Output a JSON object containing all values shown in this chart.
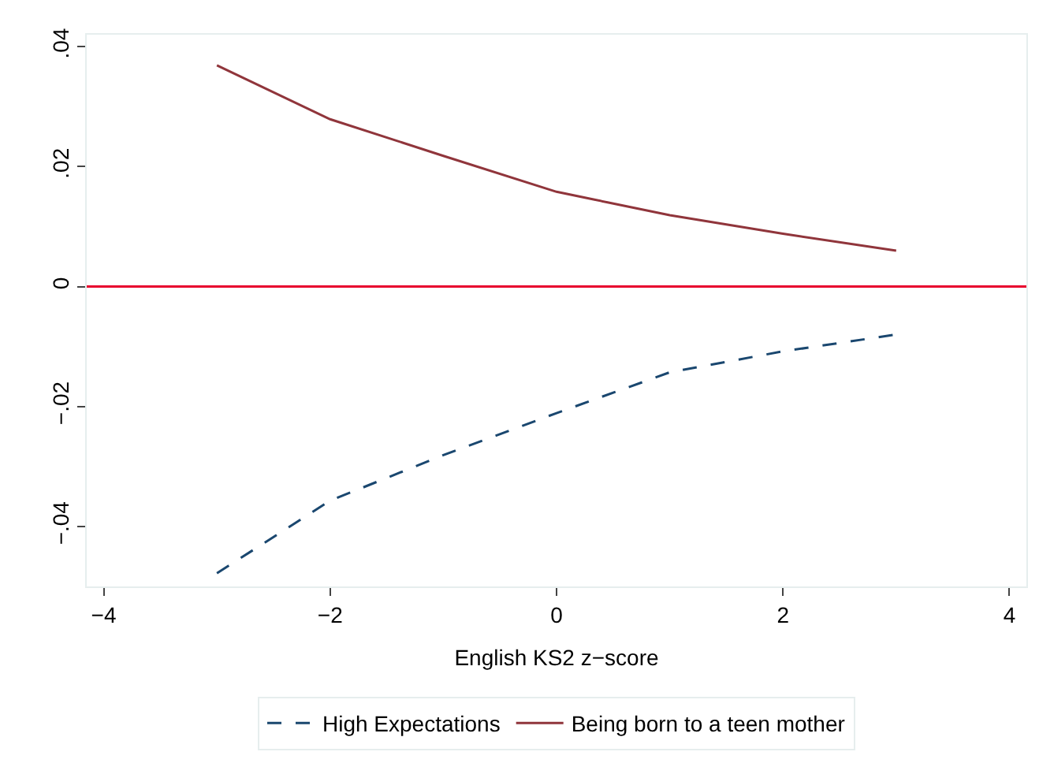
{
  "chart_data": {
    "type": "line",
    "xlabel": "English KS2 z−score",
    "x": [
      -3,
      -2,
      -1,
      0,
      1,
      2,
      3
    ],
    "series": [
      {
        "name": "High Expectations",
        "color": "#1a476f",
        "line_style": "dashed",
        "values": [
          -0.0478,
          -0.0357,
          -0.0281,
          -0.0211,
          -0.0143,
          -0.0108,
          -0.008
        ]
      },
      {
        "name": "Being born to a teen mother",
        "color": "#90353b",
        "line_style": "solid",
        "values": [
          0.0369,
          0.0279,
          0.0218,
          0.0158,
          0.0119,
          0.0088,
          0.006
        ]
      }
    ],
    "xlim": [
      -4.15,
      4.15
    ],
    "xticks": [
      {
        "value": -4,
        "label": "−4"
      },
      {
        "value": -2,
        "label": "−2"
      },
      0,
      2,
      4
    ],
    "ylim": [
      -0.05,
      0.042
    ],
    "yticks": [
      {
        "value": -0.04,
        "label": "−.04"
      },
      {
        "value": -0.02,
        "label": "−.02"
      },
      0,
      {
        "value": 0.02,
        "label": ".02"
      },
      {
        "value": 0.04,
        "label": ".04"
      }
    ],
    "ref_lines": [
      {
        "axis": "y",
        "value": 0,
        "color": "#e8002d",
        "line_style": "solid"
      }
    ],
    "legend": "bottom",
    "marker": "none"
  }
}
